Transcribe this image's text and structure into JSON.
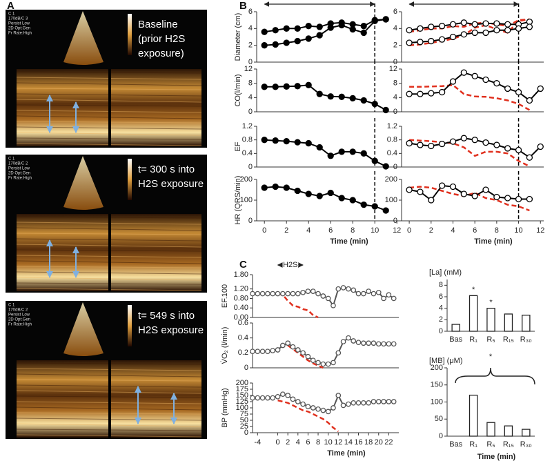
{
  "panel_labels": [
    "A",
    "B",
    "C"
  ],
  "echo_images": [
    {
      "meta": [
        "C 1",
        "170dB/C 3",
        "Persist Low",
        "2D Opt:Gen",
        "Fr Rate:High"
      ],
      "caption": [
        "Baseline",
        "(prior H2S",
        "exposure)"
      ]
    },
    {
      "meta": [
        "C 1",
        "170dB/C 2",
        "Persist Low",
        "2D Opt:Gen",
        "Fr Rate:High"
      ],
      "caption": [
        "t= 300 s into",
        "H2S exposure"
      ]
    },
    {
      "meta": [
        "C 1",
        "170dB/C 2",
        "Persist Low",
        "2D Opt:Gen",
        "Fr Rate:High"
      ],
      "caption": [
        "t= 549 s into",
        "H2S exposure"
      ]
    }
  ],
  "chart_data": [
    {
      "type": "line",
      "ylabel": "Diameter (cm)",
      "x": [
        0,
        1,
        2,
        3,
        4,
        5,
        6,
        7,
        8,
        9,
        10,
        11
      ],
      "xlim": [
        -0.7,
        12.3
      ],
      "ylim": [
        0,
        6
      ],
      "yticks": [
        0,
        2,
        4,
        6
      ],
      "vline": 10,
      "span": [
        0,
        10
      ],
      "series": [
        {
          "color": "#000000",
          "marker": "filled",
          "values": [
            3.6,
            3.8,
            4.0,
            4.0,
            4.3,
            4.2,
            4.6,
            4.7,
            4.5,
            4.3,
            5.0,
            5.1
          ]
        },
        {
          "color": "#000000",
          "marker": "filled",
          "values": [
            2.0,
            2.1,
            2.3,
            2.5,
            2.8,
            3.2,
            4.1,
            4.4,
            3.9,
            3.5,
            4.9,
            5.1
          ]
        }
      ]
    },
    {
      "type": "line",
      "ylabel": "CO(l/min)",
      "x": [
        0,
        1,
        2,
        3,
        4,
        5,
        6,
        7,
        8,
        9,
        10,
        11
      ],
      "xlim": [
        -0.7,
        12.3
      ],
      "ylim": [
        0,
        12
      ],
      "yticks": [
        0,
        4,
        8,
        12
      ],
      "vline": 10,
      "series": [
        {
          "color": "#000000",
          "marker": "filled",
          "values": [
            7.0,
            7.0,
            7.1,
            7.2,
            7.5,
            5.0,
            4.3,
            4.2,
            3.8,
            3.2,
            2.2,
            0.5
          ]
        }
      ]
    },
    {
      "type": "line",
      "ylabel": "EF",
      "x": [
        0,
        1,
        2,
        3,
        4,
        5,
        6,
        7,
        8,
        9,
        10,
        11
      ],
      "xlim": [
        -0.7,
        12.3
      ],
      "ylim": [
        0,
        1.2
      ],
      "yticks": [
        0,
        0.4,
        0.8,
        1.2
      ],
      "vline": 10,
      "series": [
        {
          "color": "#000000",
          "marker": "filled",
          "values": [
            0.8,
            0.78,
            0.76,
            0.73,
            0.7,
            0.58,
            0.33,
            0.45,
            0.45,
            0.4,
            0.18,
            0.02
          ]
        }
      ]
    },
    {
      "type": "line",
      "ylabel": "HR (QRS/min)",
      "xlabel": "Time (min)",
      "x": [
        0,
        1,
        2,
        3,
        4,
        5,
        6,
        7,
        8,
        9,
        10,
        11
      ],
      "xlim": [
        -0.7,
        12.3
      ],
      "ylim": [
        0,
        200
      ],
      "yticks": [
        0,
        100,
        200
      ],
      "xticks": [
        0,
        2,
        4,
        6,
        8,
        10,
        12
      ],
      "vline": 10,
      "series": [
        {
          "color": "#000000",
          "marker": "filled",
          "values": [
            160,
            165,
            160,
            145,
            130,
            120,
            135,
            110,
            100,
            78,
            70,
            50
          ]
        }
      ]
    },
    {
      "type": "line",
      "x": [
        0,
        1,
        2,
        3,
        4,
        5,
        6,
        7,
        8,
        9,
        10,
        11,
        12
      ],
      "xlim": [
        -0.7,
        12.3
      ],
      "ylim": [
        0,
        6
      ],
      "yticks": [
        0,
        2,
        4,
        6
      ],
      "vline": 10,
      "span": [
        0,
        10
      ],
      "series": [
        {
          "color": "#e0301e",
          "style": "dashed",
          "values": [
            3.6,
            3.8,
            4.0,
            4.0,
            4.3,
            4.2,
            4.6,
            4.7,
            4.5,
            4.3,
            5.0,
            5.1,
            null
          ]
        },
        {
          "color": "#e0301e",
          "style": "dashed",
          "values": [
            2.0,
            2.1,
            2.3,
            2.5,
            2.8,
            3.2,
            4.1,
            4.4,
            3.9,
            3.5,
            4.9,
            5.1,
            null
          ]
        },
        {
          "color": "#000000",
          "marker": "open",
          "values": [
            3.8,
            4.0,
            4.2,
            4.3,
            4.5,
            4.7,
            4.5,
            4.6,
            4.6,
            4.5,
            4.5,
            4.8,
            null
          ]
        },
        {
          "color": "#000000",
          "marker": "open",
          "values": [
            2.3,
            2.4,
            2.5,
            2.7,
            3.0,
            3.3,
            3.5,
            3.5,
            3.8,
            3.8,
            4.0,
            4.2,
            null
          ]
        }
      ]
    },
    {
      "type": "line",
      "x": [
        0,
        1,
        2,
        3,
        4,
        5,
        6,
        7,
        8,
        9,
        10,
        11,
        12
      ],
      "xlim": [
        -0.7,
        12.3
      ],
      "ylim": [
        0,
        12
      ],
      "yticks": [
        0,
        4,
        8,
        12
      ],
      "vline": 10,
      "series": [
        {
          "color": "#e0301e",
          "style": "dashed",
          "values": [
            7.0,
            7.0,
            7.1,
            7.2,
            7.5,
            5.0,
            4.3,
            4.2,
            3.8,
            3.2,
            2.2,
            0.5,
            null
          ]
        },
        {
          "color": "#000000",
          "marker": "open",
          "values": [
            5.0,
            5.0,
            5.2,
            5.5,
            8.5,
            11.0,
            10.0,
            9.0,
            8.0,
            6.5,
            5.5,
            3.2,
            6.5
          ]
        }
      ]
    },
    {
      "type": "line",
      "x": [
        0,
        1,
        2,
        3,
        4,
        5,
        6,
        7,
        8,
        9,
        10,
        11,
        12
      ],
      "xlim": [
        -0.7,
        12.3
      ],
      "ylim": [
        0,
        1.2
      ],
      "yticks": [
        0,
        0.4,
        0.8,
        1.2
      ],
      "vline": 10,
      "series": [
        {
          "color": "#e0301e",
          "style": "dashed",
          "values": [
            0.8,
            0.78,
            0.76,
            0.73,
            0.7,
            0.58,
            0.33,
            0.45,
            0.45,
            0.4,
            0.18,
            0.02,
            null
          ]
        },
        {
          "color": "#000000",
          "marker": "open",
          "values": [
            0.7,
            0.65,
            0.62,
            0.68,
            0.75,
            0.85,
            0.8,
            0.72,
            0.65,
            0.55,
            0.5,
            0.28,
            0.6
          ]
        }
      ]
    },
    {
      "type": "line",
      "xlabel": "Time (min)",
      "x": [
        0,
        1,
        2,
        3,
        4,
        5,
        6,
        7,
        8,
        9,
        10,
        11,
        12
      ],
      "xlim": [
        -0.7,
        12.3
      ],
      "ylim": [
        0,
        200
      ],
      "yticks": [
        0,
        100,
        200
      ],
      "xticks": [
        0,
        2,
        4,
        6,
        8,
        10,
        12
      ],
      "vline": 10,
      "series": [
        {
          "color": "#e0301e",
          "style": "dashed",
          "values": [
            160,
            165,
            160,
            145,
            130,
            120,
            135,
            110,
            100,
            78,
            70,
            50,
            null
          ]
        },
        {
          "color": "#000000",
          "marker": "open",
          "values": [
            150,
            140,
            100,
            170,
            165,
            130,
            120,
            150,
            115,
            110,
            105,
            105,
            null
          ]
        }
      ]
    },
    {
      "type": "line",
      "ylabel": "EF.100",
      "x": [
        -5,
        -4,
        -3,
        -2,
        -1,
        0,
        1,
        2,
        3,
        4,
        5,
        6,
        7,
        8,
        9,
        10,
        11,
        12,
        13,
        14,
        15,
        16,
        17,
        18,
        19,
        20,
        21,
        22,
        23
      ],
      "xlim": [
        -5,
        24
      ],
      "ylim": [
        0,
        1.8
      ],
      "yticks": [
        {
          "value": 0,
          "label": "0.00"
        },
        {
          "value": 0.4,
          "label": "0.40"
        },
        {
          "value": 0.8,
          "label": "0.80"
        },
        {
          "value": 1.2,
          "label": "1.20"
        },
        {
          "value": 1.8,
          "label": "1.80"
        }
      ],
      "span": [
        0,
        5
      ],
      "span_label": "H2S",
      "series": [
        {
          "color": "#e0301e",
          "style": "dashed",
          "values": [
            null,
            null,
            null,
            null,
            null,
            1.0,
            0.95,
            0.7,
            0.5,
            0.45,
            0.35,
            0.3,
            0.1,
            0.0,
            null,
            null,
            null,
            null,
            null,
            null,
            null,
            null,
            null,
            null,
            null,
            null,
            null,
            null,
            null
          ]
        },
        {
          "color": "#555555",
          "marker": "open",
          "values": [
            1.0,
            1.0,
            1.0,
            1.0,
            1.0,
            1.0,
            1.0,
            1.0,
            1.0,
            1.0,
            1.05,
            1.1,
            1.1,
            1.0,
            0.9,
            0.8,
            0.5,
            1.2,
            1.25,
            1.2,
            1.15,
            1.0,
            1.0,
            1.1,
            1.0,
            1.05,
            0.8,
            0.95,
            0.8
          ]
        }
      ]
    },
    {
      "type": "line",
      "ylabel": "V̇O₂ (l/min)",
      "x": [
        -5,
        -4,
        -3,
        -2,
        -1,
        0,
        1,
        2,
        3,
        4,
        5,
        6,
        7,
        8,
        9,
        10,
        11,
        12,
        13,
        14,
        15,
        16,
        17,
        18,
        19,
        20,
        21,
        22,
        23
      ],
      "xlim": [
        -5,
        24
      ],
      "ylim": [
        0,
        0.6
      ],
      "yticks": [
        0,
        0.2,
        0.4,
        0.6
      ],
      "series": [
        {
          "color": "#e0301e",
          "style": "dashed",
          "values": [
            null,
            null,
            null,
            null,
            null,
            null,
            null,
            0.3,
            0.25,
            0.2,
            0.15,
            0.1,
            0.06,
            0.03,
            0.0,
            null,
            null,
            null,
            null,
            null,
            null,
            null,
            null,
            null,
            null,
            null,
            null,
            null,
            null
          ]
        },
        {
          "color": "#555555",
          "marker": "open",
          "values": [
            0.22,
            0.22,
            0.22,
            0.22,
            0.23,
            0.24,
            0.3,
            0.33,
            0.28,
            0.24,
            0.2,
            0.15,
            0.1,
            0.07,
            0.05,
            0.05,
            0.07,
            0.2,
            0.35,
            0.4,
            0.36,
            0.34,
            0.33,
            0.33,
            0.33,
            0.32,
            0.32,
            0.32,
            0.32
          ]
        }
      ]
    },
    {
      "type": "line",
      "ylabel": "BP (mmHg)",
      "xlabel": "Time (min)",
      "x": [
        -5,
        -4,
        -3,
        -2,
        -1,
        0,
        1,
        2,
        3,
        4,
        5,
        6,
        7,
        8,
        9,
        10,
        11,
        12,
        13,
        14,
        15,
        16,
        17,
        18,
        19,
        20,
        21,
        22,
        23
      ],
      "xlim": [
        -5,
        24
      ],
      "ylim": [
        0,
        200
      ],
      "yticks": [
        0,
        25,
        50,
        75,
        100,
        125,
        150,
        175,
        200
      ],
      "xticks": [
        -4,
        0,
        2,
        4,
        6,
        8,
        10,
        12,
        14,
        16,
        18,
        20,
        22
      ],
      "series": [
        {
          "color": "#e0301e",
          "style": "dashed",
          "values": [
            null,
            null,
            null,
            null,
            null,
            130,
            125,
            120,
            110,
            100,
            90,
            85,
            75,
            65,
            55,
            40,
            20,
            5,
            null,
            null,
            null,
            null,
            null,
            null,
            null,
            null,
            null,
            null,
            null
          ]
        },
        {
          "color": "#555555",
          "marker": "open",
          "values": [
            140,
            140,
            140,
            140,
            140,
            145,
            155,
            150,
            135,
            125,
            115,
            105,
            100,
            95,
            90,
            85,
            100,
            150,
            110,
            115,
            120,
            120,
            120,
            120,
            125,
            125,
            125,
            125,
            125
          ]
        }
      ]
    },
    {
      "type": "bar",
      "ylabel": "[La] (mM)",
      "categories": [
        "Bas",
        "R₁",
        "R₅",
        "R₁₅",
        "R₃₀"
      ],
      "values": [
        1.2,
        6.2,
        4.0,
        3.0,
        2.8
      ],
      "ylim": [
        0,
        9
      ],
      "yticks": [
        0,
        2,
        4,
        6,
        8
      ],
      "annotations": [
        "*",
        "*"
      ]
    },
    {
      "type": "bar",
      "ylabel": "[MB] (μM)",
      "xlabel": "Time (min)",
      "categories": [
        "Bas",
        "R₁",
        "R₅",
        "R₁₅",
        "R₃₀"
      ],
      "values": [
        0,
        120,
        40,
        30,
        20
      ],
      "ylim": [
        0,
        200
      ],
      "yticks": [
        0,
        50,
        100,
        150,
        200
      ],
      "annotations": [
        "*"
      ]
    }
  ]
}
